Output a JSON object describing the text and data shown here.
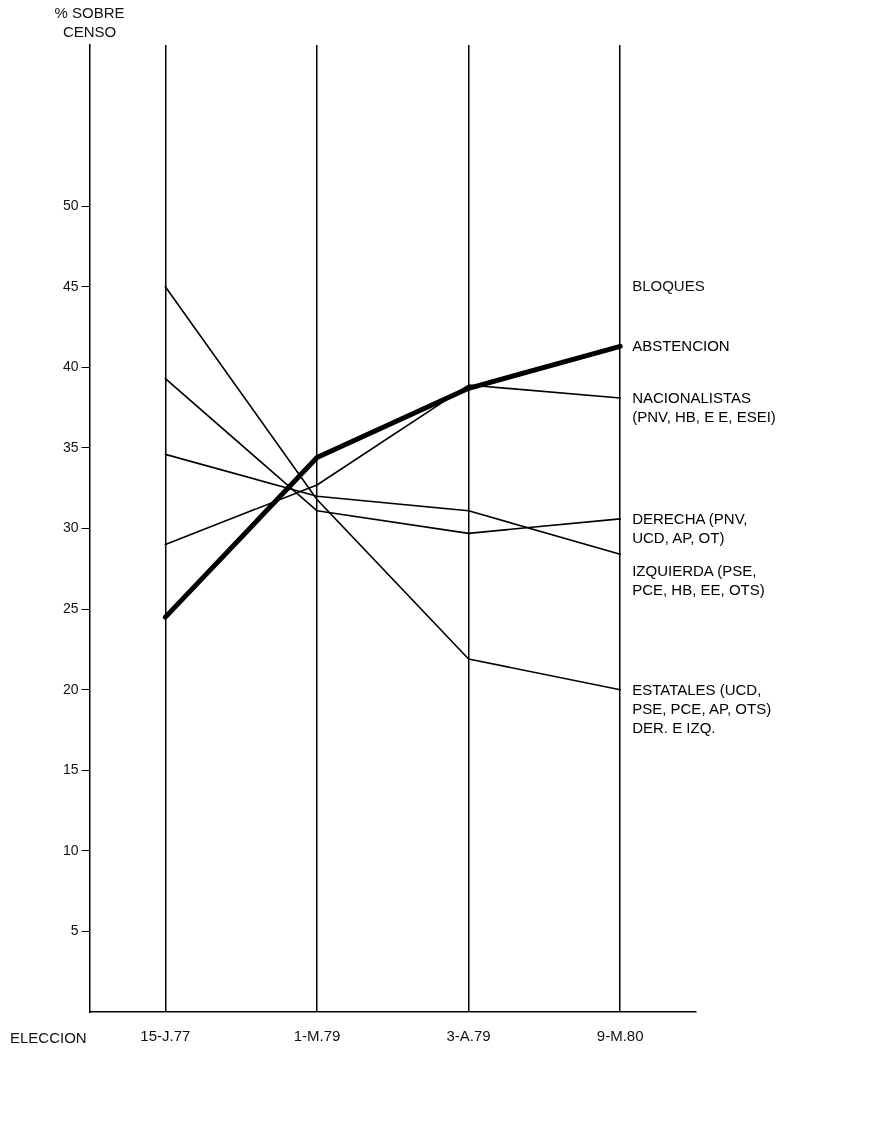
{
  "chart_data": {
    "type": "line",
    "ylabel": "% SOBRE CENSO",
    "xlabel": "ELECCION",
    "legend_title": "BLOQUES",
    "categories": [
      "15-J.77",
      "1-M.79",
      "3-A.79",
      "9-M.80"
    ],
    "ylim": [
      0,
      60
    ],
    "yticks": [
      5,
      10,
      15,
      20,
      25,
      30,
      35,
      40,
      45,
      50
    ],
    "grid": "x",
    "legend": false,
    "marker": "none",
    "line_style": "solid",
    "series": [
      {
        "name": "ABSTENCION",
        "color": "#000000",
        "values": [
          24.5,
          34.4,
          38.7,
          41.3
        ]
      },
      {
        "name": "NACIONALISTAS (PNV, HB, E E, ESEI)",
        "color": "#000000",
        "values": [
          29.0,
          32.7,
          38.9,
          38.1
        ]
      },
      {
        "name": "DERECHA (PNV, UCD, AP, OT)",
        "color": "#000000",
        "values": [
          39.3,
          31.1,
          29.7,
          30.6
        ]
      },
      {
        "name": "IZQUIERDA (PSE, PCE, HB, EE, OTS)",
        "color": "#000000",
        "values": [
          34.6,
          32.0,
          31.1,
          28.4
        ]
      },
      {
        "name": "ESTATALES (UCD, PSE, PCE, AP, OTS) DER. E IZQ.",
        "color": "#000000",
        "values": [
          45.0,
          31.8,
          21.9,
          20.0
        ]
      }
    ]
  }
}
